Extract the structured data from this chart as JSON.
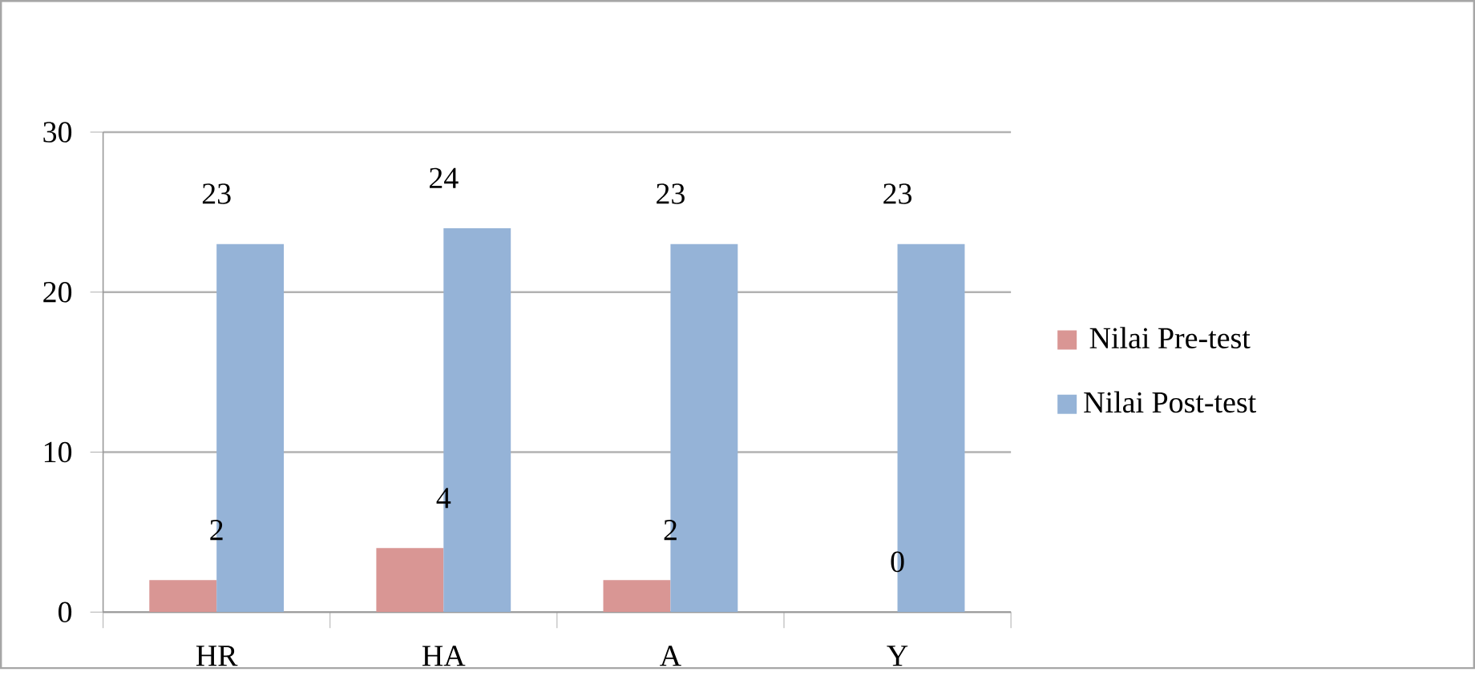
{
  "chart_data": {
    "type": "bar",
    "categories": [
      "HR",
      "HA",
      "A",
      "Y"
    ],
    "series": [
      {
        "name": "Nilai Pre-test",
        "color": "#d99694",
        "values": [
          2,
          4,
          2,
          0
        ]
      },
      {
        "name": "Nilai Post-test",
        "color": "#95b3d7",
        "values": [
          23,
          24,
          23,
          23
        ]
      }
    ],
    "ylim": [
      0,
      30
    ],
    "yticks": [
      0,
      10,
      20,
      30
    ],
    "grid": "y",
    "legend": "right",
    "data_labels": true
  }
}
